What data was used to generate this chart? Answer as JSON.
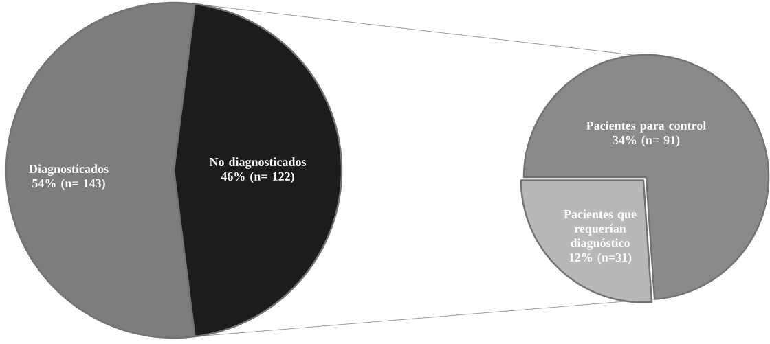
{
  "chart_data": [
    {
      "type": "pie",
      "categories": [
        "Diagnosticados",
        "No diagnosticados"
      ],
      "values": [
        54,
        46
      ],
      "value_labels": [
        "54% (n= 143)",
        "46% (n= 122)"
      ],
      "colors": [
        "#7d7d7d",
        "#1c1c1c"
      ]
    },
    {
      "type": "pie",
      "categories": [
        "Pacientes para control",
        "Pacientes que requerían diagnóstico"
      ],
      "values": [
        34,
        12
      ],
      "value_labels": [
        "34% (n= 91)",
        "12% (n=31)"
      ],
      "colors": [
        "#8a8a8a",
        "#b8b8b8"
      ]
    }
  ]
}
